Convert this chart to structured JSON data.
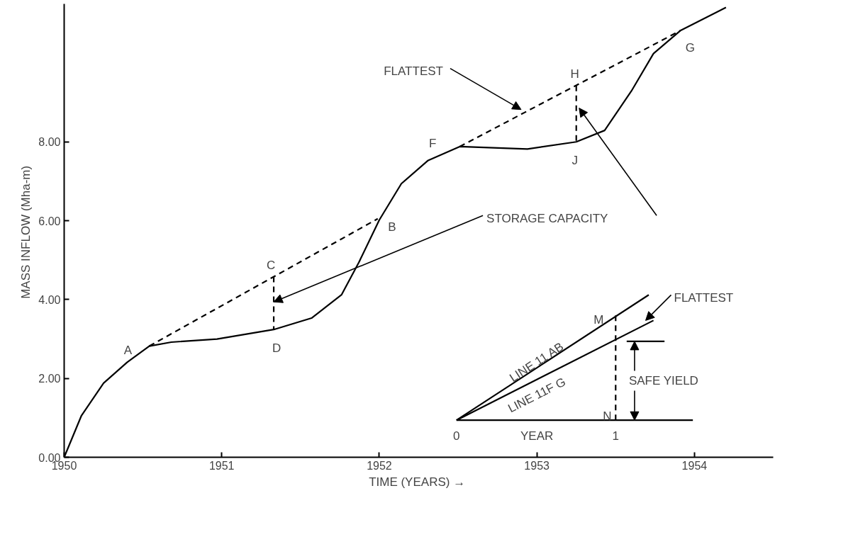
{
  "chart_data": {
    "type": "line",
    "xlabel": "TIME  (YEARS) →",
    "ylabel": "MASS  INFLOW (Mha-m)",
    "xlim": [
      1950,
      1954.5
    ],
    "ylim": [
      0,
      11.5
    ],
    "xticks": [
      1950,
      1951,
      1952,
      1953,
      1954
    ],
    "yticks": [
      {
        "value": 0,
        "label": "0.00"
      },
      {
        "value": 2,
        "label": "2.00"
      },
      {
        "value": 4,
        "label": "4.00"
      },
      {
        "value": 6,
        "label": "6.00"
      },
      {
        "value": 8,
        "label": "8.00"
      }
    ],
    "grid": false,
    "marker": "none",
    "series": [
      {
        "color": "#000000",
        "line_style": "solid",
        "x": [
          1950,
          1950.11,
          1950.25,
          1950.4,
          1950.54,
          1950.68,
          1950.97,
          1951.33,
          1951.57,
          1951.76,
          1951.87,
          1952.0,
          1952.14,
          1952.31,
          1952.51,
          1952.94,
          1953.25,
          1953.43,
          1953.6,
          1953.74,
          1953.91,
          1954.2
        ],
        "values": [
          0,
          1.06,
          1.88,
          2.41,
          2.82,
          2.92,
          3.0,
          3.24,
          3.53,
          4.12,
          4.94,
          6.02,
          6.94,
          7.53,
          7.88,
          7.82,
          8.0,
          8.29,
          9.29,
          10.24,
          10.82,
          11.41
        ]
      },
      {
        "color": "#000000",
        "line_style": "dashed",
        "x": [
          1950.54,
          1951.99
        ],
        "values": [
          2.82,
          6.05
        ]
      },
      {
        "color": "#000000",
        "line_style": "dashed",
        "x": [
          1952.51,
          1953.91
        ],
        "values": [
          7.88,
          10.82
        ]
      },
      {
        "color": "#000000",
        "line_style": "dashed",
        "x": [
          1951.33,
          1951.33
        ],
        "values": [
          4.58,
          3.24
        ]
      },
      {
        "color": "#000000",
        "line_style": "dashed",
        "x": [
          1953.25,
          1953.25
        ],
        "values": [
          9.43,
          8.0
        ]
      },
      {
        "color": "#000000",
        "line_style": "solid",
        "x": [
          1952.49,
          1953.99
        ],
        "values": [
          0.94,
          0.94
        ]
      },
      {
        "color": "#000000",
        "line_style": "solid",
        "x": [
          1952.49,
          1953.71
        ],
        "values": [
          0.94,
          4.12
        ]
      },
      {
        "color": "#000000",
        "line_style": "solid",
        "x": [
          1952.49,
          1953.74
        ],
        "values": [
          0.94,
          3.47
        ]
      },
      {
        "color": "#000000",
        "line_style": "dashed",
        "x": [
          1953.5,
          1953.5
        ],
        "values": [
          3.6,
          0.94
        ]
      },
      {
        "color": "#000000",
        "line_style": "solid",
        "x": [
          1953.57,
          1953.81
        ],
        "values": [
          2.94,
          2.94
        ]
      }
    ],
    "annotations": [
      {
        "text": "A",
        "x": 1950.54,
        "y": 2.82
      },
      {
        "text": "B",
        "x": 1952.0,
        "y": 6.02
      },
      {
        "text": "C",
        "x": 1951.33,
        "y": 4.58
      },
      {
        "text": "D",
        "x": 1951.33,
        "y": 3.24
      },
      {
        "text": "F",
        "x": 1952.51,
        "y": 7.88
      },
      {
        "text": "G",
        "x": 1953.91,
        "y": 10.82
      },
      {
        "text": "H",
        "x": 1953.25,
        "y": 9.43
      },
      {
        "text": "J",
        "x": 1953.25,
        "y": 8.0
      },
      {
        "text": "FLATTEST",
        "x": 1952.9,
        "y": 8.82
      },
      {
        "text": "STORAGE  CAPACITY",
        "x": 1951.33,
        "y": 3.94
      },
      {
        "text": "LINE 11 AB",
        "x": 1953.0,
        "y": 2.27
      },
      {
        "text": "LINE 11F G",
        "x": 1953.0,
        "y": 1.97
      },
      {
        "text": "FLATTEST",
        "x": 1953.69,
        "y": 3.47
      },
      {
        "text": "SAFE  YIELD",
        "x": 1953.62,
        "y": 2.94
      },
      {
        "text": "M",
        "x": 1953.5,
        "y": 3.6
      },
      {
        "text": "N",
        "x": 1953.5,
        "y": 0.94
      },
      {
        "text": "0",
        "x": 1952.49,
        "y": 0.94
      },
      {
        "text": "1",
        "x": 1953.5,
        "y": 0.94
      },
      {
        "text": "YEAR",
        "x": 1953.0,
        "y": 0.94
      }
    ]
  }
}
